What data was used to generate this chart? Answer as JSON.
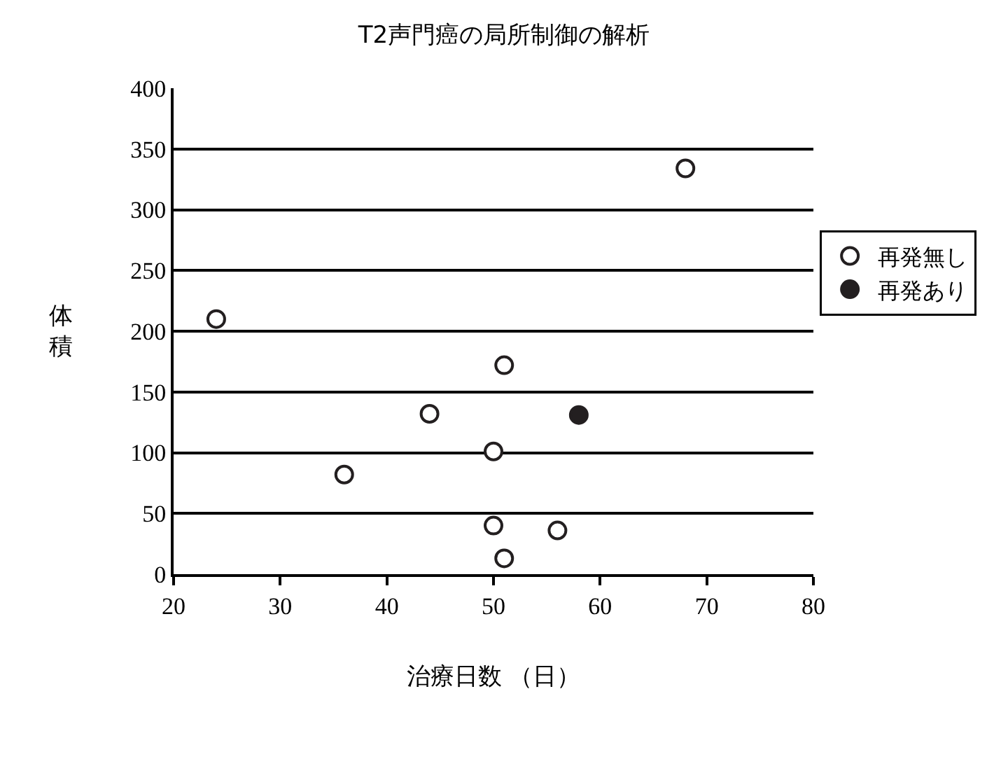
{
  "chart_data": {
    "type": "scatter",
    "title": "T2声門癌の局所制御の解析",
    "xlabel": "治療日数 （日）",
    "ylabel": "体積",
    "series": [
      {
        "name": "再発無し",
        "color": "#ffffff",
        "x": [
          24,
          68,
          51,
          44,
          50,
          36,
          50,
          56,
          51
        ],
        "values": [
          210,
          334,
          172,
          132,
          101,
          82,
          40,
          36,
          13
        ]
      },
      {
        "name": "再発あり",
        "color": "#231f20",
        "x": [
          58
        ],
        "values": [
          131
        ]
      }
    ],
    "xlim": [
      20,
      80
    ],
    "xticks": [
      20,
      30,
      40,
      50,
      60,
      70,
      80
    ],
    "ylim": [
      0,
      400
    ],
    "yticks": [
      0,
      50,
      100,
      150,
      200,
      250,
      300,
      350,
      400
    ],
    "grid": "y",
    "legend": "right",
    "marker": "circle"
  }
}
